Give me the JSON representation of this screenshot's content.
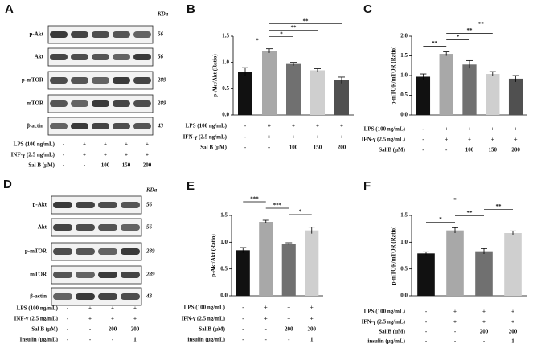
{
  "chart_data": [
    {
      "type": "bar",
      "panel": "B",
      "ylabel": "p-Akt/Akt (Ratio)",
      "values": [
        0.82,
        1.22,
        0.97,
        0.85,
        0.66
      ],
      "errors": [
        0.08,
        0.04,
        0.03,
        0.03,
        0.06
      ],
      "colors": [
        "#111111",
        "#a8a8a8",
        "#707070",
        "#cfcfcf",
        "#505050"
      ],
      "ylim": [
        0,
        1.5
      ],
      "yticks": [
        {
          "value": 0,
          "label": "0.0"
        },
        {
          "value": 0.5,
          "label": "0.5"
        },
        {
          "value": 1,
          "label": "1.0"
        },
        {
          "value": 1.5,
          "label": "1.5"
        }
      ],
      "conditions": [
        {
          "label": "LPS (100 ng/mL)",
          "marks": [
            "-",
            "+",
            "+",
            "+",
            "+"
          ]
        },
        {
          "label": "IFN-γ (2.5 ng/mL)",
          "marks": [
            "-",
            "+",
            "+",
            "+",
            "+"
          ]
        },
        {
          "label": "Sal B (μM)",
          "marks": [
            "-",
            "-",
            "100",
            "150",
            "200"
          ]
        }
      ],
      "significance": [
        {
          "text": "**",
          "between": [
            1,
            4
          ]
        },
        {
          "text": "**",
          "between": [
            1,
            3
          ]
        },
        {
          "text": "*",
          "between": [
            1,
            2
          ]
        },
        {
          "text": "*",
          "between": [
            0,
            1
          ]
        }
      ]
    },
    {
      "type": "bar",
      "panel": "C",
      "ylabel": "p-mTOR/mTOR (Ratio)",
      "values": [
        0.97,
        1.55,
        1.28,
        1.04,
        0.92
      ],
      "errors": [
        0.07,
        0.05,
        0.1,
        0.06,
        0.08
      ],
      "colors": [
        "#111111",
        "#a8a8a8",
        "#707070",
        "#cfcfcf",
        "#505050"
      ],
      "ylim": [
        0,
        2
      ],
      "yticks": [
        {
          "value": 0,
          "label": "0.0"
        },
        {
          "value": 0.5,
          "label": "0.5"
        },
        {
          "value": 1,
          "label": "1.0"
        },
        {
          "value": 1.5,
          "label": "1.5"
        },
        {
          "value": 2,
          "label": "2.0"
        }
      ],
      "conditions": [
        {
          "label": "LPS (100 ng/mL)",
          "marks": [
            "-",
            "+",
            "+",
            "+",
            "+"
          ]
        },
        {
          "label": "IFN-γ (2.5 ng/mL)",
          "marks": [
            "-",
            "+",
            "+",
            "+",
            "+"
          ]
        },
        {
          "label": "Sal B (μM)",
          "marks": [
            "-",
            "-",
            "100",
            "150",
            "200"
          ]
        }
      ],
      "significance": [
        {
          "text": "**",
          "between": [
            1,
            4
          ]
        },
        {
          "text": "**",
          "between": [
            1,
            3
          ]
        },
        {
          "text": "*",
          "between": [
            1,
            2
          ]
        },
        {
          "text": "**",
          "between": [
            0,
            1
          ]
        }
      ]
    },
    {
      "type": "bar",
      "panel": "E",
      "ylabel": "p-Akt/Akt (Ratio)",
      "values": [
        0.85,
        1.38,
        0.97,
        1.22
      ],
      "errors": [
        0.05,
        0.03,
        0.02,
        0.06
      ],
      "colors": [
        "#111111",
        "#a8a8a8",
        "#707070",
        "#cfcfcf"
      ],
      "ylim": [
        0,
        1.5
      ],
      "yticks": [
        {
          "value": 0,
          "label": "0.0"
        },
        {
          "value": 0.5,
          "label": "0.5"
        },
        {
          "value": 1,
          "label": "1.0"
        },
        {
          "value": 1.5,
          "label": "1.5"
        }
      ],
      "conditions": [
        {
          "label": "LPS (100 ng/mL)",
          "marks": [
            "-",
            "+",
            "+",
            "+"
          ]
        },
        {
          "label": "IFN-γ (2.5 ng/mL)",
          "marks": [
            "-",
            "+",
            "+",
            "+"
          ]
        },
        {
          "label": "Sal B (μM)",
          "marks": [
            "-",
            "-",
            "200",
            "200"
          ]
        },
        {
          "label": "insulin (μg/mL)",
          "marks": [
            "-",
            "-",
            "-",
            "1"
          ]
        }
      ],
      "significance": [
        {
          "text": "***",
          "between": [
            0,
            1
          ]
        },
        {
          "text": "***",
          "between": [
            1,
            2
          ]
        },
        {
          "text": "*",
          "between": [
            2,
            3
          ]
        }
      ]
    },
    {
      "type": "bar",
      "panel": "F",
      "ylabel": "p-mTOR/mTOR (Ratio)",
      "values": [
        0.79,
        1.22,
        0.83,
        1.17
      ],
      "errors": [
        0.03,
        0.05,
        0.05,
        0.04
      ],
      "colors": [
        "#111111",
        "#a8a8a8",
        "#707070",
        "#cfcfcf"
      ],
      "ylim": [
        0,
        1.5
      ],
      "yticks": [
        {
          "value": 0,
          "label": "0.0"
        },
        {
          "value": 0.5,
          "label": "0.5"
        },
        {
          "value": 1,
          "label": "1.0"
        },
        {
          "value": 1.5,
          "label": "1.5"
        }
      ],
      "conditions": [
        {
          "label": "LPS (100 ng/mL)",
          "marks": [
            "-",
            "+",
            "+",
            "+"
          ]
        },
        {
          "label": "IFN-γ (2.5 ng/mL)",
          "marks": [
            "-",
            "+",
            "+",
            "+"
          ]
        },
        {
          "label": "Sal B (μM)",
          "marks": [
            "-",
            "-",
            "200",
            "200"
          ]
        },
        {
          "label": "insulin (μg/mL)",
          "marks": [
            "-",
            "-",
            "-",
            "1"
          ]
        }
      ],
      "significance": [
        {
          "text": "*",
          "between": [
            0,
            2
          ]
        },
        {
          "text": "**",
          "between": [
            2,
            3
          ]
        },
        {
          "text": "**",
          "between": [
            1,
            2
          ]
        },
        {
          "text": "*",
          "between": [
            0,
            1
          ]
        }
      ]
    }
  ],
  "blots": [
    {
      "panel": "A",
      "unit": "KDa",
      "rows": [
        {
          "protein": "p-Akt",
          "kda": "56"
        },
        {
          "protein": "Akt",
          "kda": "56"
        },
        {
          "protein": "p-mTOR",
          "kda": "289"
        },
        {
          "protein": "mTOR",
          "kda": "289"
        },
        {
          "protein": "β-actin",
          "kda": "43"
        }
      ],
      "conditions": [
        {
          "label": "LPS (100 ng/mL)",
          "marks": [
            "-",
            "+",
            "+",
            "+",
            "+"
          ]
        },
        {
          "label": "INF-γ (2.5 ng/mL)",
          "marks": [
            "-",
            "+",
            "+",
            "+",
            "+"
          ]
        },
        {
          "label": "Sal B (μM)",
          "marks": [
            "-",
            "-",
            "100",
            "150",
            "200"
          ]
        }
      ]
    },
    {
      "panel": "D",
      "unit": "KDa",
      "rows": [
        {
          "protein": "p-Akt",
          "kda": "56"
        },
        {
          "protein": "Akt",
          "kda": "56"
        },
        {
          "protein": "p-mTOR",
          "kda": "289"
        },
        {
          "protein": "mTOR",
          "kda": "289"
        },
        {
          "protein": "β-actin",
          "kda": "43"
        }
      ],
      "conditions": [
        {
          "label": "LPS (100 ng/mL)",
          "marks": [
            "-",
            "+",
            "+",
            "+"
          ]
        },
        {
          "label": "INF-γ (2.5 ng/mL)",
          "marks": [
            "-",
            "+",
            "+",
            "+"
          ]
        },
        {
          "label": "Sal B (μM)",
          "marks": [
            "-",
            "-",
            "200",
            "200"
          ]
        },
        {
          "label": "Insulin (μg/mL)",
          "marks": [
            "-",
            "-",
            "-",
            "1"
          ]
        }
      ]
    }
  ]
}
